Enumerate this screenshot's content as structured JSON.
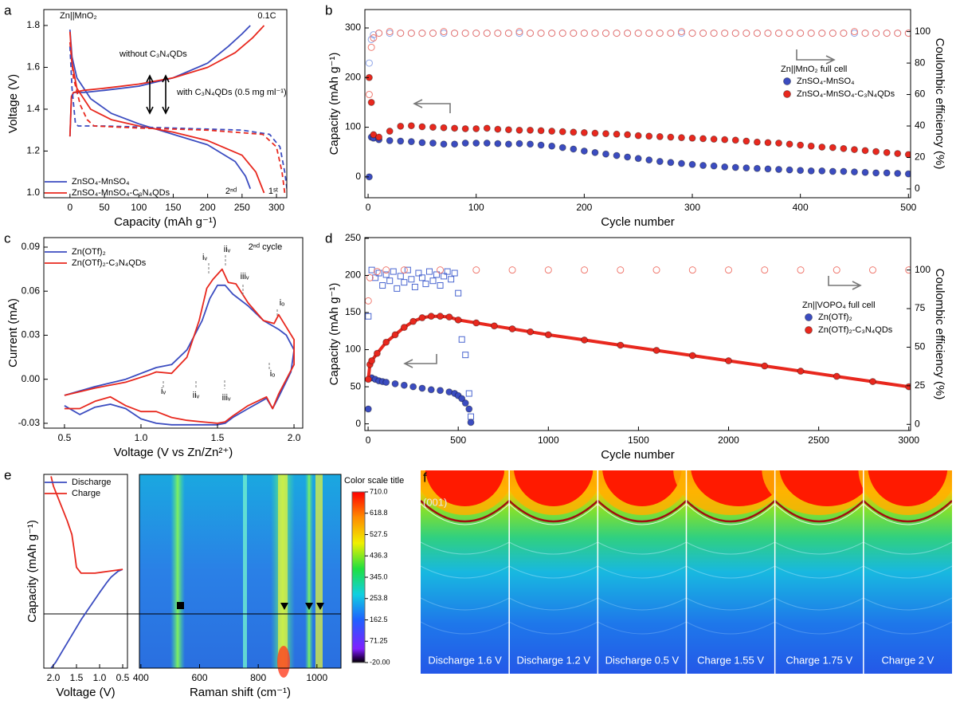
{
  "chart_data": [
    {
      "panel": "a",
      "type": "line",
      "xlabel": "Capacity (mAh g⁻¹)",
      "ylabel": "Voltage (V)",
      "xlim": [
        -38,
        315
      ],
      "ylim": [
        0.977,
        1.876
      ],
      "xticks": [
        0,
        50,
        100,
        150,
        200,
        250,
        300
      ],
      "yticks": [
        {
          "value": 1.0,
          "label": "1.0"
        },
        1.2,
        1.4,
        1.6,
        1.8
      ],
      "legend": "lower left",
      "annotations": [
        "Zn||MnO₂",
        "0.1C",
        "without C₃N₄QDs",
        "with C₃N₄QDs (0.5 mg ml⁻¹)",
        "2ⁿᵈ",
        "1ˢᵗ"
      ],
      "series": [
        {
          "name": "ZnSO₄-MnSO₄",
          "color": "#3b4cc0",
          "x": [
            0,
            2,
            5,
            20,
            50,
            100,
            150,
            200,
            230,
            250,
            262,
            null,
            0,
            3,
            10,
            30,
            60,
            100,
            150,
            200,
            240,
            255,
            262
          ],
          "values": [
            1.27,
            1.45,
            1.48,
            1.48,
            1.49,
            1.51,
            1.55,
            1.62,
            1.7,
            1.76,
            1.8,
            null,
            1.78,
            1.65,
            1.55,
            1.45,
            1.38,
            1.33,
            1.28,
            1.23,
            1.15,
            1.08,
            1.02
          ]
        },
        {
          "name": "ZnSO₄-MnSO₄-C₃N₄QDs",
          "color": "#e8281e",
          "x": [
            0,
            2,
            5,
            20,
            50,
            100,
            150,
            200,
            240,
            265,
            282,
            null,
            0,
            3,
            10,
            30,
            60,
            100,
            150,
            200,
            250,
            270,
            282
          ],
          "values": [
            1.27,
            1.46,
            1.48,
            1.49,
            1.5,
            1.52,
            1.55,
            1.6,
            1.67,
            1.74,
            1.8,
            null,
            1.77,
            1.62,
            1.5,
            1.4,
            1.35,
            1.32,
            1.29,
            1.25,
            1.18,
            1.1,
            1.0
          ]
        },
        {
          "color": "#3b4cc0",
          "dash": true,
          "x": [
            0,
            3,
            8,
            12,
            50,
            150,
            250,
            290,
            305,
            312,
            316
          ],
          "values": [
            1.7,
            1.5,
            1.33,
            1.32,
            1.32,
            1.31,
            1.3,
            1.28,
            1.22,
            1.1,
            1.0
          ]
        },
        {
          "color": "#e8281e",
          "dash": true,
          "x": [
            0,
            5,
            15,
            25,
            35,
            100,
            200,
            280,
            300,
            308,
            312
          ],
          "values": [
            1.72,
            1.55,
            1.42,
            1.35,
            1.32,
            1.31,
            1.3,
            1.28,
            1.22,
            1.1,
            1.0
          ]
        }
      ]
    },
    {
      "panel": "b",
      "type": "scatter",
      "xlabel": "Cycle number",
      "ylabel": "Capacity (mAh g⁻¹)",
      "y2label": "Coulombic efficiency (%)",
      "xlim": [
        -3,
        502
      ],
      "ylim": [
        -42,
        337
      ],
      "y2lim": [
        -5.6,
        114
      ],
      "xticks": [
        0,
        100,
        200,
        300,
        400,
        500
      ],
      "yticks": [
        0,
        100,
        200,
        300
      ],
      "y2ticks": [
        0,
        20,
        40,
        60,
        80,
        100
      ],
      "legend": "center right",
      "legend_title": "Zn||MnO₂ full cell",
      "x": [
        1,
        3,
        5,
        10,
        20,
        30,
        40,
        50,
        60,
        70,
        80,
        90,
        100,
        110,
        120,
        130,
        140,
        150,
        160,
        170,
        180,
        190,
        200,
        210,
        220,
        230,
        240,
        250,
        260,
        270,
        280,
        290,
        300,
        310,
        320,
        330,
        340,
        350,
        360,
        370,
        380,
        390,
        400,
        410,
        420,
        430,
        440,
        450,
        460,
        470,
        480,
        490,
        500
      ],
      "series": [
        {
          "color": "#8fa6e8",
          "marker": "open-circle",
          "axis": "y2",
          "values": [
            80,
            95,
            98,
            99,
            99,
            99,
            99,
            99,
            99,
            99,
            99,
            99,
            99,
            99,
            99,
            99,
            99,
            99,
            99,
            99,
            99,
            99,
            99,
            99,
            99,
            99,
            99,
            99,
            99,
            99,
            99,
            99,
            99,
            99,
            99,
            99,
            99,
            99,
            99,
            99,
            99,
            99,
            99,
            99,
            99,
            99,
            99,
            99,
            99,
            99,
            99,
            99,
            99
          ]
        },
        {
          "color": "#f07a70",
          "marker": "open-circle",
          "axis": "y2",
          "values": [
            60,
            90,
            96,
            99,
            100,
            99,
            99,
            99,
            99,
            100,
            99,
            99,
            99,
            99,
            99,
            99,
            100,
            99,
            99,
            99,
            99,
            99,
            99,
            99,
            99,
            99,
            99,
            99,
            99,
            99,
            99,
            100,
            99,
            99,
            99,
            99,
            99,
            99,
            99,
            99,
            99,
            99,
            99,
            99,
            99,
            99,
            99,
            100,
            99,
            99,
            99,
            99,
            99
          ]
        },
        {
          "name": "ZnSO₄-MnSO₄",
          "color": "#3b4cc0",
          "marker": "circle",
          "values": [
            0,
            80,
            78,
            75,
            73,
            72,
            71,
            69,
            68,
            66,
            66,
            68,
            68,
            68,
            67,
            66,
            67,
            66,
            64,
            62,
            59,
            56,
            52,
            49,
            46,
            43,
            40,
            37,
            34,
            31,
            29,
            27,
            25,
            23,
            22,
            20,
            19,
            18,
            17,
            16,
            15,
            14,
            13,
            12,
            12,
            11,
            11,
            10,
            9,
            8,
            8,
            7,
            6
          ]
        },
        {
          "name": "ZnSO₄-MnSO₄-C₃N₄QDs",
          "color": "#e8281e",
          "marker": "circle",
          "values": [
            200,
            150,
            85,
            80,
            92,
            102,
            103,
            101,
            100,
            99,
            98,
            97,
            97,
            98,
            96,
            95,
            94,
            94,
            93,
            92,
            91,
            90,
            89,
            88,
            87,
            86,
            85,
            83,
            82,
            81,
            80,
            79,
            78,
            77,
            76,
            75,
            74,
            72,
            70,
            69,
            68,
            66,
            64,
            62,
            60,
            59,
            57,
            55,
            53,
            51,
            49,
            47,
            45
          ]
        }
      ]
    },
    {
      "panel": "c",
      "type": "line",
      "xlabel": "Voltage (V vs Zn/Zn²⁺)",
      "ylabel": "Current (mA)",
      "xlim": [
        0.365,
        2.057
      ],
      "ylim": [
        -0.0333,
        0.0965
      ],
      "xticks": [
        0.5,
        {
          "value": 1,
          "label": "1.0"
        },
        1.5,
        {
          "value": 2,
          "label": "2.0"
        }
      ],
      "yticks": [
        -0.03,
        {
          "value": 0,
          "label": "0.00"
        },
        0.03,
        0.06,
        0.09
      ],
      "legend": "upper left",
      "annotations": [
        "2ⁿᵈ cycle",
        "iᵥ",
        "iiᵥ",
        "iiiᵥ",
        "iₒ",
        "iᵥ",
        "iiᵥ",
        "iiiᵥ",
        "iₒ"
      ],
      "series": [
        {
          "name": "Zn(OTf)₂",
          "color": "#3b4cc0",
          "x": [
            0.5,
            0.7,
            0.9,
            1.05,
            1.1,
            1.2,
            1.3,
            1.4,
            1.45,
            1.5,
            1.55,
            1.6,
            1.7,
            1.8,
            1.9,
            1.95,
            2.0,
            1.98,
            1.9,
            1.86,
            1.82,
            1.7,
            1.6,
            1.55,
            1.5,
            1.4,
            1.3,
            1.2,
            1.1,
            1.0,
            0.9,
            0.8,
            0.7,
            0.6,
            0.5
          ],
          "values": [
            -0.011,
            -0.005,
            0.0,
            0.006,
            0.008,
            0.01,
            0.02,
            0.04,
            0.055,
            0.064,
            0.064,
            0.058,
            0.05,
            0.04,
            0.034,
            0.03,
            0.02,
            0.005,
            -0.012,
            -0.02,
            -0.013,
            -0.02,
            -0.026,
            -0.03,
            -0.031,
            -0.031,
            -0.031,
            -0.031,
            -0.03,
            -0.027,
            -0.02,
            -0.017,
            -0.019,
            -0.024,
            -0.018
          ]
        },
        {
          "name": "Zn(OTf)₂-C₃N₄QDs",
          "color": "#e8281e",
          "x": [
            0.5,
            0.7,
            0.9,
            1.05,
            1.1,
            1.2,
            1.3,
            1.38,
            1.43,
            1.47,
            1.53,
            1.57,
            1.62,
            1.7,
            1.8,
            1.87,
            1.9,
            2.0,
            2.0,
            1.9,
            1.86,
            1.82,
            1.7,
            1.6,
            1.55,
            1.5,
            1.4,
            1.3,
            1.2,
            1.1,
            1.0,
            0.9,
            0.8,
            0.7,
            0.6,
            0.5
          ],
          "values": [
            -0.011,
            -0.006,
            -0.002,
            0.003,
            0.005,
            0.004,
            0.015,
            0.04,
            0.062,
            0.068,
            0.075,
            0.066,
            0.065,
            0.052,
            0.04,
            0.038,
            0.044,
            0.027,
            0.01,
            -0.01,
            -0.02,
            -0.012,
            -0.018,
            -0.025,
            -0.029,
            -0.03,
            -0.029,
            -0.028,
            -0.026,
            -0.022,
            -0.022,
            -0.018,
            -0.012,
            -0.015,
            -0.02,
            -0.02
          ]
        }
      ]
    },
    {
      "panel": "d",
      "type": "scatter",
      "xlabel": "Cycle number",
      "ylabel": "Capacity (mAh g⁻¹)",
      "y2label": "Coulombic efficiency (%)",
      "xlim": [
        -18,
        3010
      ],
      "ylim": [
        -9,
        251
      ],
      "y2lim": [
        -4,
        121
      ],
      "xticks": [
        0,
        500,
        1000,
        1500,
        2000,
        2500,
        3000
      ],
      "yticks": [
        0,
        50,
        100,
        150,
        200,
        250
      ],
      "y2ticks": [
        0,
        25,
        50,
        75,
        100
      ],
      "legend": "center right",
      "legend_title": "Zn||VOPO₄ full cell",
      "series": [
        {
          "color": "#4a66d0",
          "marker": "open-square",
          "axis": "y2",
          "x": [
            1,
            20,
            40,
            60,
            80,
            100,
            120,
            140,
            160,
            180,
            200,
            220,
            240,
            260,
            280,
            300,
            320,
            340,
            360,
            380,
            400,
            420,
            440,
            460,
            480,
            500,
            520,
            540,
            560,
            570
          ],
          "values": [
            70,
            100,
            95,
            98,
            90,
            97,
            93,
            99,
            88,
            96,
            92,
            100,
            94,
            89,
            98,
            95,
            91,
            99,
            93,
            97,
            90,
            96,
            99,
            94,
            98,
            85,
            55,
            45,
            20,
            5
          ]
        },
        {
          "color": "#f07a70",
          "marker": "open-circle",
          "axis": "y2",
          "x": [
            1,
            10,
            50,
            100,
            200,
            400,
            600,
            800,
            1000,
            1200,
            1400,
            1600,
            1800,
            2000,
            2200,
            2400,
            2600,
            2800,
            3000
          ],
          "values": [
            80,
            95,
            99,
            100,
            100,
            100,
            100,
            100,
            100,
            100,
            100,
            100,
            100,
            100,
            100,
            100,
            100,
            100,
            100
          ]
        },
        {
          "name": "Zn(OTf)₂",
          "color": "#3b4cc0",
          "marker": "circle",
          "x": [
            1,
            20,
            40,
            60,
            80,
            100,
            150,
            200,
            250,
            300,
            350,
            400,
            450,
            480,
            500,
            520,
            540,
            560,
            570
          ],
          "values": [
            20,
            62,
            60,
            58,
            57,
            56,
            54,
            52,
            50,
            48,
            46,
            45,
            43,
            41,
            38,
            34,
            28,
            20,
            2
          ]
        },
        {
          "name": "Zn(OTf)₂-C₃N₄QDs",
          "color": "#e8281e",
          "marker": "circle",
          "line": true,
          "x": [
            1,
            10,
            20,
            50,
            100,
            150,
            200,
            250,
            300,
            350,
            400,
            450,
            500,
            600,
            700,
            800,
            900,
            1000,
            1200,
            1400,
            1600,
            1800,
            2000,
            2200,
            2400,
            2600,
            2800,
            3000
          ],
          "values": [
            60,
            80,
            85,
            95,
            110,
            120,
            130,
            138,
            143,
            145,
            145,
            144,
            140,
            136,
            132,
            128,
            124,
            120,
            113,
            106,
            99,
            92,
            85,
            78,
            71,
            64,
            57,
            50
          ]
        }
      ]
    },
    {
      "panel": "e",
      "type": "line",
      "xlabel": "Voltage (V)",
      "ylabel": "Capacity (mAh g⁻¹)",
      "xlim": [
        2.207,
        0.397
      ],
      "ylim": [
        0,
        1
      ],
      "xticks": [
        {
          "value": 2,
          "label": "2.0"
        },
        1.5,
        {
          "value": 1,
          "label": "1.0"
        },
        0.5
      ],
      "legend": "upper right",
      "series": [
        {
          "name": "Discharge",
          "color": "#3b4cc0",
          "x": [
            2.05,
            1.95,
            1.8,
            1.6,
            1.4,
            1.2,
            1.0,
            0.85,
            0.75,
            0.6,
            0.5
          ],
          "values": [
            0,
            0.03,
            0.09,
            0.17,
            0.25,
            0.32,
            0.39,
            0.44,
            0.47,
            0.5,
            0.51
          ]
        },
        {
          "name": "Charge",
          "color": "#e8281e",
          "x": [
            0.5,
            0.8,
            1.1,
            1.4,
            1.5,
            1.55,
            1.6,
            1.7,
            1.8,
            1.9,
            2.0,
            2.05
          ],
          "values": [
            0.51,
            0.5,
            0.49,
            0.49,
            0.52,
            0.61,
            0.69,
            0.76,
            0.82,
            0.88,
            0.94,
            0.99
          ]
        }
      ]
    },
    {
      "type": "heatmap",
      "xlabel": "Raman shift (cm⁻¹)",
      "xlim": [
        395,
        1082
      ],
      "xticks": [
        400,
        600,
        800,
        1000
      ],
      "colorbar": {
        "title": "Color scale title",
        "lim": [
          -20,
          710
        ],
        "ticks": [
          {
            "value": 710,
            "label": "710.0"
          },
          618.8,
          527.5,
          436.3,
          {
            "value": 345,
            "label": "345.0"
          },
          253.8,
          162.5,
          71.25,
          {
            "value": -20,
            "label": "-20.00"
          }
        ]
      }
    }
  ],
  "xrd_images": {
    "panel": "f",
    "peak_label": "(001)",
    "labels": [
      "Discharge 1.6 V",
      "Discharge 1.2 V",
      "Discharge 0.5 V",
      "Charge 1.55 V",
      "Charge 1.75 V",
      "Charge 2 V"
    ]
  }
}
